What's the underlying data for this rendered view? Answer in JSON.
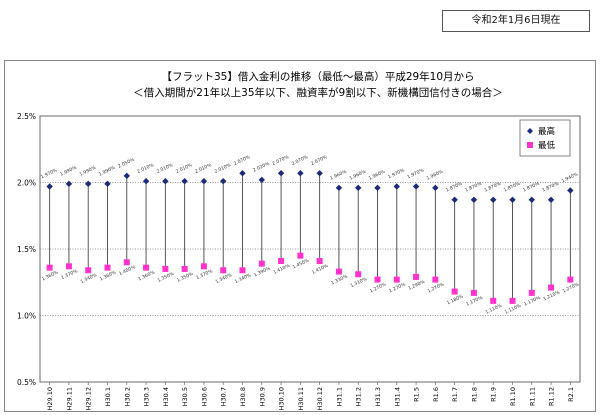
{
  "header": {
    "date_label": "令和2年1月6日現在"
  },
  "chart_data": {
    "type": "scatter",
    "title": "【フラット35】借入金利の推移（最低～最高）平成29年10月から",
    "subtitle": "＜借入期間が21年以上35年以下、融資率が9割以下、新機構団信付きの場合＞",
    "categories": [
      "H29.10",
      "H29.11",
      "H29.12",
      "H30.1",
      "H30.2",
      "H30.3",
      "H30.4",
      "H30.5",
      "H30.6",
      "H30.7",
      "H30.8",
      "H30.9",
      "H30.10",
      "H30.11",
      "H30.12",
      "H31.1",
      "H31.2",
      "H31.3",
      "H31.4",
      "R1.5",
      "R1.6",
      "R1.7",
      "R1.8",
      "R1.9",
      "R1.10",
      "R1.11",
      "R1.12",
      "R2.1"
    ],
    "ylim": [
      0.5,
      2.5
    ],
    "yticks": [
      "0.5%",
      "1.0%",
      "1.5%",
      "2.0%",
      "2.5%"
    ],
    "grid": true,
    "legend_position": "top-right",
    "series": [
      {
        "name": "最高",
        "color": "#1f2a78",
        "marker": "diamond",
        "values": [
          1.97,
          1.99,
          1.99,
          1.99,
          2.05,
          2.01,
          2.01,
          2.01,
          2.01,
          2.01,
          2.07,
          2.02,
          2.07,
          2.07,
          2.07,
          1.96,
          1.96,
          1.96,
          1.97,
          1.97,
          1.96,
          1.87,
          1.87,
          1.87,
          1.87,
          1.87,
          1.87,
          1.94
        ],
        "labels": [
          "1.970%",
          "1.990%",
          "1.990%",
          "1.990%",
          "2.050%",
          "2.010%",
          "2.010%",
          "2.010%",
          "2.010%",
          "2.010%",
          "2.070%",
          "2.020%",
          "2.070%",
          "2.070%",
          "2.070%",
          "1.960%",
          "1.960%",
          "1.960%",
          "1.970%",
          "1.970%",
          "1.960%",
          "1.870%",
          "1.870%",
          "1.870%",
          "1.870%",
          "1.870%",
          "1.870%",
          "1.940%"
        ]
      },
      {
        "name": "最低",
        "color": "#ff33cc",
        "marker": "square",
        "values": [
          1.36,
          1.37,
          1.34,
          1.36,
          1.4,
          1.36,
          1.35,
          1.35,
          1.37,
          1.34,
          1.34,
          1.39,
          1.41,
          1.45,
          1.41,
          1.33,
          1.31,
          1.27,
          1.27,
          1.29,
          1.27,
          1.18,
          1.17,
          1.11,
          1.11,
          1.17,
          1.21,
          1.27
        ],
        "labels": [
          "1.360%",
          "1.370%",
          "1.340%",
          "1.360%",
          "1.400%",
          "1.360%",
          "1.350%",
          "1.350%",
          "1.370%",
          "1.340%",
          "1.340%",
          "1.390%",
          "1.410%",
          "1.450%",
          "1.410%",
          "1.330%",
          "1.310%",
          "1.270%",
          "1.270%",
          "1.290%",
          "1.270%",
          "1.180%",
          "1.170%",
          "1.110%",
          "1.110%",
          "1.170%",
          "1.210%",
          "1.270%"
        ]
      }
    ]
  }
}
